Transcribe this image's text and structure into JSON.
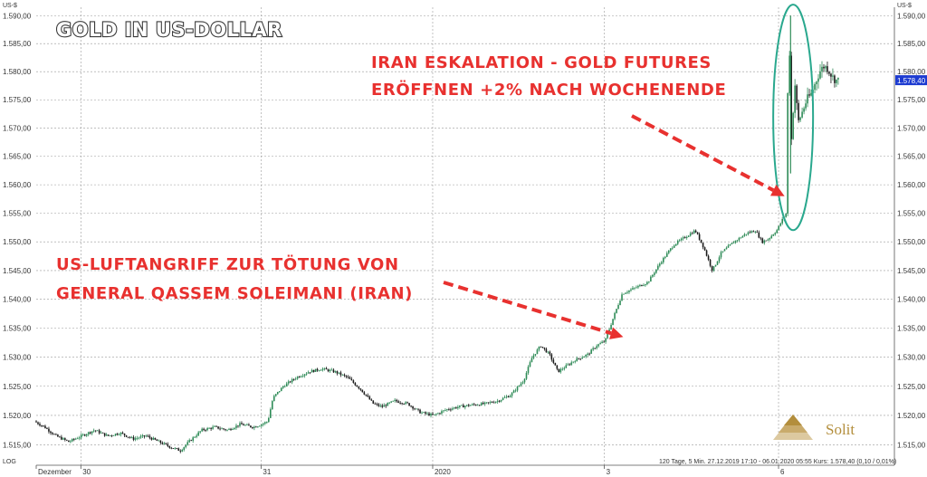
{
  "chart_data": {
    "type": "candlestick",
    "title": "GOLD IN US-DOLLAR",
    "y_unit": "US-$",
    "scale_label": "LOG",
    "ylim": [
      1511.5,
      1591.5
    ],
    "y_ticks": [
      "1.515,00",
      "1.520,00",
      "1.525,00",
      "1.530,00",
      "1.535,00",
      "1.540,00",
      "1.545,00",
      "1.550,00",
      "1.555,00",
      "1.560,00",
      "1.565,00",
      "1.570,00",
      "1.575,00",
      "1.580,00",
      "1.585,00",
      "1.590,00"
    ],
    "y_tick_values": [
      1515,
      1520,
      1525,
      1530,
      1535,
      1540,
      1545,
      1550,
      1555,
      1560,
      1565,
      1570,
      1575,
      1580,
      1585,
      1590
    ],
    "x_ticks": [
      "Dezember",
      "30",
      "31",
      "2020",
      "3",
      "6"
    ],
    "x_tick_positions": [
      0.0,
      0.052,
      0.262,
      0.462,
      0.662,
      0.865
    ],
    "price_path": [
      [
        0.0,
        1519
      ],
      [
        0.012,
        1518
      ],
      [
        0.025,
        1516.5
      ],
      [
        0.04,
        1515.5
      ],
      [
        0.055,
        1516.5
      ],
      [
        0.07,
        1517.5
      ],
      [
        0.085,
        1516.5
      ],
      [
        0.1,
        1517
      ],
      [
        0.115,
        1516
      ],
      [
        0.13,
        1516.5
      ],
      [
        0.145,
        1515.5
      ],
      [
        0.16,
        1514.5
      ],
      [
        0.17,
        1514
      ],
      [
        0.18,
        1515.5
      ],
      [
        0.195,
        1517.5
      ],
      [
        0.21,
        1518
      ],
      [
        0.225,
        1517.5
      ],
      [
        0.24,
        1518.5
      ],
      [
        0.255,
        1518
      ],
      [
        0.265,
        1518.5
      ],
      [
        0.272,
        1519
      ],
      [
        0.278,
        1523
      ],
      [
        0.29,
        1525
      ],
      [
        0.305,
        1526.5
      ],
      [
        0.32,
        1527.5
      ],
      [
        0.335,
        1528
      ],
      [
        0.35,
        1527.5
      ],
      [
        0.365,
        1526.5
      ],
      [
        0.38,
        1524.5
      ],
      [
        0.395,
        1522
      ],
      [
        0.405,
        1521.5
      ],
      [
        0.42,
        1522.5
      ],
      [
        0.435,
        1522
      ],
      [
        0.45,
        1520.5
      ],
      [
        0.465,
        1520
      ],
      [
        0.48,
        1521
      ],
      [
        0.495,
        1521.5
      ],
      [
        0.51,
        1521.8
      ],
      [
        0.525,
        1522
      ],
      [
        0.54,
        1522.5
      ],
      [
        0.555,
        1523.5
      ],
      [
        0.57,
        1526
      ],
      [
        0.58,
        1530
      ],
      [
        0.59,
        1532
      ],
      [
        0.6,
        1530.5
      ],
      [
        0.61,
        1527.5
      ],
      [
        0.62,
        1528.5
      ],
      [
        0.63,
        1529.5
      ],
      [
        0.645,
        1530.5
      ],
      [
        0.655,
        1532
      ],
      [
        0.665,
        1532.8
      ],
      [
        0.675,
        1537
      ],
      [
        0.685,
        1541
      ],
      [
        0.7,
        1542
      ],
      [
        0.715,
        1543
      ],
      [
        0.73,
        1546.5
      ],
      [
        0.745,
        1549.5
      ],
      [
        0.76,
        1551
      ],
      [
        0.77,
        1552
      ],
      [
        0.78,
        1549
      ],
      [
        0.79,
        1545
      ],
      [
        0.8,
        1548
      ],
      [
        0.815,
        1550
      ],
      [
        0.83,
        1551.5
      ],
      [
        0.84,
        1552
      ],
      [
        0.848,
        1550
      ],
      [
        0.855,
        1550.5
      ],
      [
        0.865,
        1552
      ],
      [
        0.872,
        1554
      ],
      [
        0.876,
        1555
      ],
      [
        0.879,
        1590
      ],
      [
        0.882,
        1568
      ],
      [
        0.886,
        1578
      ],
      [
        0.89,
        1571
      ],
      [
        0.895,
        1573
      ],
      [
        0.9,
        1575
      ],
      [
        0.905,
        1576
      ],
      [
        0.91,
        1578
      ],
      [
        0.915,
        1580
      ],
      [
        0.92,
        1581
      ],
      [
        0.925,
        1580.5
      ],
      [
        0.93,
        1579
      ],
      [
        0.935,
        1578.4
      ]
    ],
    "spike_low": 1562,
    "last_price_label": "1.578,40",
    "footer_text": "120 Tage, 5 Min. 27.12.2019 17:10 - 06.01.2020 05:55  Kurs: 1.578,40  (0,10 / 0,01%)",
    "annotations": [
      {
        "lines": [
          "US-LUFTANGRIFF  ZUR  TÖTUNG  VON",
          "GENERAL QASSEM  SOLEIMANI (IRAN)"
        ]
      },
      {
        "lines": [
          "IRAN ESKALATION - GOLD FUTURES",
          "ERÖFFNEN +2% NACH WOCHENENDE"
        ]
      }
    ],
    "colors": {
      "up": "#2e8b57",
      "down": "#1a1a1a",
      "arrow": "#e8312f",
      "ellipse": "#2aa88e",
      "price_marker": "#1d3bd1"
    }
  },
  "logo": {
    "text": "Solit"
  }
}
